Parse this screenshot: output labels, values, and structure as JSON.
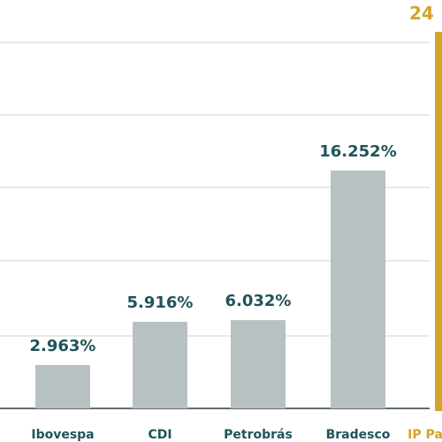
{
  "chart_data": {
    "type": "bar",
    "categories": [
      "Ibovespa",
      "CDI",
      "Petrobrás",
      "Bradesco",
      "IP Pa"
    ],
    "values": [
      2.963,
      5.916,
      6.032,
      16.252,
      null
    ],
    "value_labels": [
      "2.963%",
      "5.916%",
      "6.032%",
      "16.252%",
      ""
    ],
    "highlight": {
      "category": "IP Pa",
      "value_label": "24"
    },
    "ylim": [
      0,
      25
    ],
    "grid": true,
    "colors": {
      "bar": "#b7c1c2",
      "label": "#21535b",
      "highlight": "#d4a32a",
      "grid": "#cfd4d6"
    }
  }
}
